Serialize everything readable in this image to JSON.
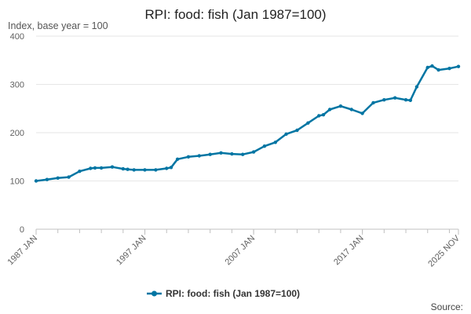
{
  "chart_data": {
    "type": "line",
    "title": "RPI: food: fish (Jan 1987=100)",
    "subtitle": "Index, base year = 100",
    "ylim": [
      0,
      400
    ],
    "y_ticks": [
      "0",
      "100",
      "200",
      "300",
      "400"
    ],
    "x_range": [
      "1987-01",
      "2025-11"
    ],
    "x_ticks": [
      {
        "date": "1987-01",
        "label": "1987 JAN"
      },
      {
        "date": "1997-01",
        "label": "1997 JAN"
      },
      {
        "date": "2007-01",
        "label": "2007 JAN"
      },
      {
        "date": "2017-01",
        "label": "2017 JAN"
      },
      {
        "date": "2025-11",
        "label": "2025 NOV"
      }
    ],
    "grid": true,
    "legend_position": "bottom-center",
    "series": [
      {
        "name": "RPI: food: fish (Jan 1987=100)",
        "color": "#0075a3",
        "x": [
          "1987-01",
          "1988-01",
          "1989-01",
          "1990-01",
          "1991-01",
          "1992-01",
          "1992-06",
          "1993-01",
          "1994-01",
          "1995-01",
          "1995-06",
          "1996-01",
          "1997-01",
          "1998-01",
          "1999-01",
          "1999-06",
          "2000-01",
          "2001-01",
          "2002-01",
          "2003-01",
          "2004-01",
          "2005-01",
          "2006-01",
          "2007-01",
          "2008-01",
          "2009-01",
          "2010-01",
          "2011-01",
          "2012-01",
          "2013-01",
          "2013-06",
          "2014-01",
          "2015-01",
          "2016-01",
          "2017-01",
          "2018-01",
          "2019-01",
          "2020-01",
          "2021-01",
          "2021-06",
          "2022-01",
          "2023-01",
          "2023-06",
          "2024-01",
          "2025-01",
          "2025-11"
        ],
        "values": [
          100,
          103,
          106,
          108,
          120,
          126,
          127,
          127,
          129,
          125,
          124,
          123,
          123,
          123,
          126,
          128,
          145,
          150,
          152,
          155,
          158,
          156,
          155,
          160,
          172,
          180,
          197,
          205,
          220,
          235,
          237,
          248,
          255,
          248,
          240,
          262,
          268,
          272,
          268,
          267,
          295,
          335,
          338,
          330,
          333,
          337
        ]
      }
    ]
  },
  "source": {
    "label": "Source:"
  }
}
